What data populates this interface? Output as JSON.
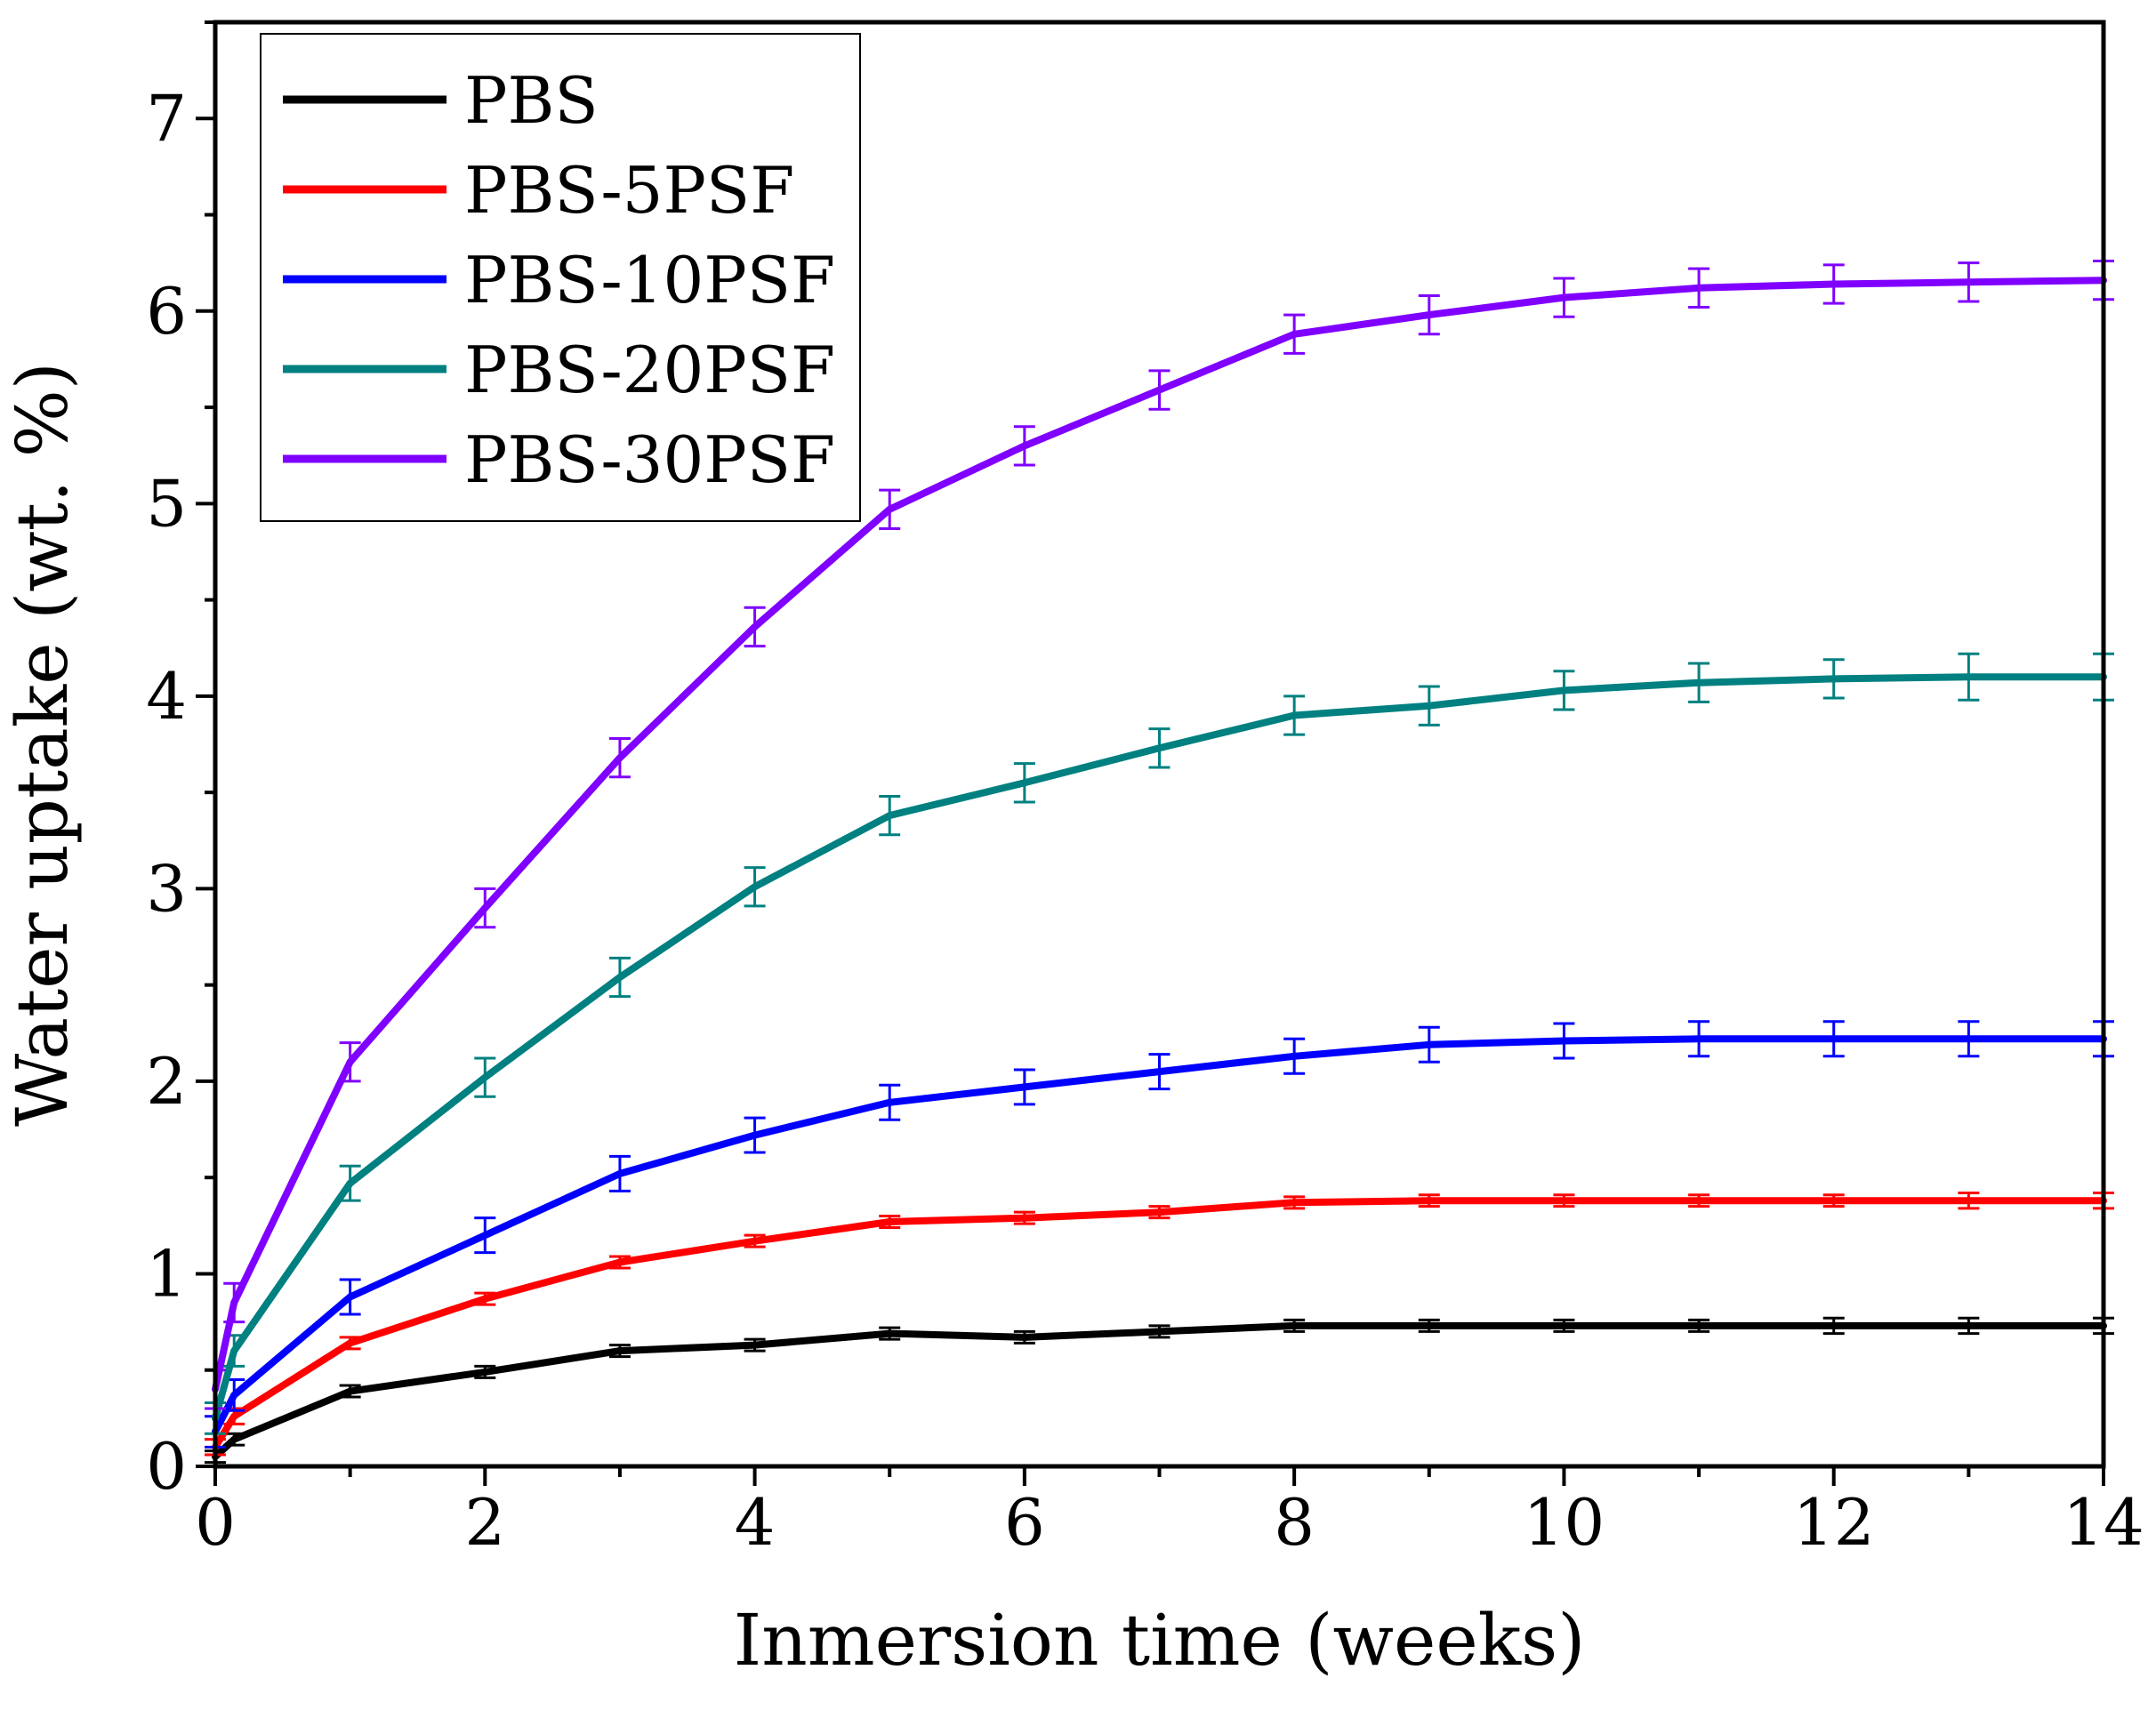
{
  "chart_data": {
    "type": "line",
    "title": "",
    "xlabel": "Inmersion time (weeks)",
    "ylabel": "Water uptake (wt. %)",
    "xlim": [
      0,
      14
    ],
    "ylim": [
      0,
      7.5
    ],
    "x_ticks": [
      0,
      2,
      4,
      6,
      8,
      10,
      12,
      14
    ],
    "x_tick_labels": [
      "0",
      "2",
      "4",
      "6",
      "8",
      "10",
      "12",
      "14"
    ],
    "y_ticks": [
      0,
      1,
      2,
      3,
      4,
      5,
      6,
      7
    ],
    "y_tick_labels": [
      "0",
      "1",
      "2",
      "3",
      "4",
      "5",
      "6",
      "7"
    ],
    "grid": false,
    "legend_position": "top-left",
    "x": [
      0,
      0.14,
      1,
      2,
      3,
      4,
      5,
      6,
      7,
      8,
      9,
      10,
      11,
      12,
      13,
      14
    ],
    "series": [
      {
        "name": "PBS",
        "color": "#000000",
        "values": [
          0.05,
          0.14,
          0.39,
          0.49,
          0.6,
          0.63,
          0.69,
          0.67,
          0.7,
          0.73,
          0.73,
          0.73,
          0.73,
          0.73,
          0.73,
          0.73
        ],
        "errors": [
          0.03,
          0.03,
          0.03,
          0.03,
          0.03,
          0.03,
          0.03,
          0.03,
          0.03,
          0.03,
          0.03,
          0.03,
          0.03,
          0.04,
          0.04,
          0.04
        ]
      },
      {
        "name": "PBS-5PSF",
        "color": "#ff0000",
        "values": [
          0.1,
          0.26,
          0.64,
          0.87,
          1.06,
          1.17,
          1.27,
          1.29,
          1.32,
          1.37,
          1.38,
          1.38,
          1.38,
          1.38,
          1.38,
          1.38
        ],
        "errors": [
          0.04,
          0.04,
          0.03,
          0.03,
          0.03,
          0.03,
          0.03,
          0.03,
          0.03,
          0.03,
          0.03,
          0.03,
          0.03,
          0.03,
          0.04,
          0.04
        ]
      },
      {
        "name": "PBS-10PSF",
        "color": "#0000ff",
        "values": [
          0.18,
          0.37,
          0.88,
          1.2,
          1.52,
          1.72,
          1.89,
          1.97,
          2.05,
          2.13,
          2.19,
          2.21,
          2.22,
          2.22,
          2.22,
          2.22
        ],
        "errors": [
          0.08,
          0.08,
          0.09,
          0.09,
          0.09,
          0.09,
          0.09,
          0.09,
          0.09,
          0.09,
          0.09,
          0.09,
          0.09,
          0.09,
          0.09,
          0.09
        ]
      },
      {
        "name": "PBS-20PSF",
        "color": "#008080",
        "values": [
          0.25,
          0.6,
          1.47,
          2.02,
          2.54,
          3.01,
          3.38,
          3.55,
          3.73,
          3.9,
          3.95,
          4.03,
          4.07,
          4.09,
          4.1,
          4.1
        ],
        "errors": [
          0.08,
          0.08,
          0.09,
          0.1,
          0.1,
          0.1,
          0.1,
          0.1,
          0.1,
          0.1,
          0.1,
          0.1,
          0.1,
          0.1,
          0.12,
          0.12
        ]
      },
      {
        "name": "PBS-30PSF",
        "color": "#8000ff",
        "values": [
          0.4,
          0.85,
          2.1,
          2.9,
          3.68,
          4.36,
          4.97,
          5.3,
          5.59,
          5.88,
          5.98,
          6.07,
          6.12,
          6.14,
          6.15,
          6.16
        ],
        "errors": [
          0.1,
          0.1,
          0.1,
          0.1,
          0.1,
          0.1,
          0.1,
          0.1,
          0.1,
          0.1,
          0.1,
          0.1,
          0.1,
          0.1,
          0.1,
          0.1
        ]
      }
    ]
  }
}
